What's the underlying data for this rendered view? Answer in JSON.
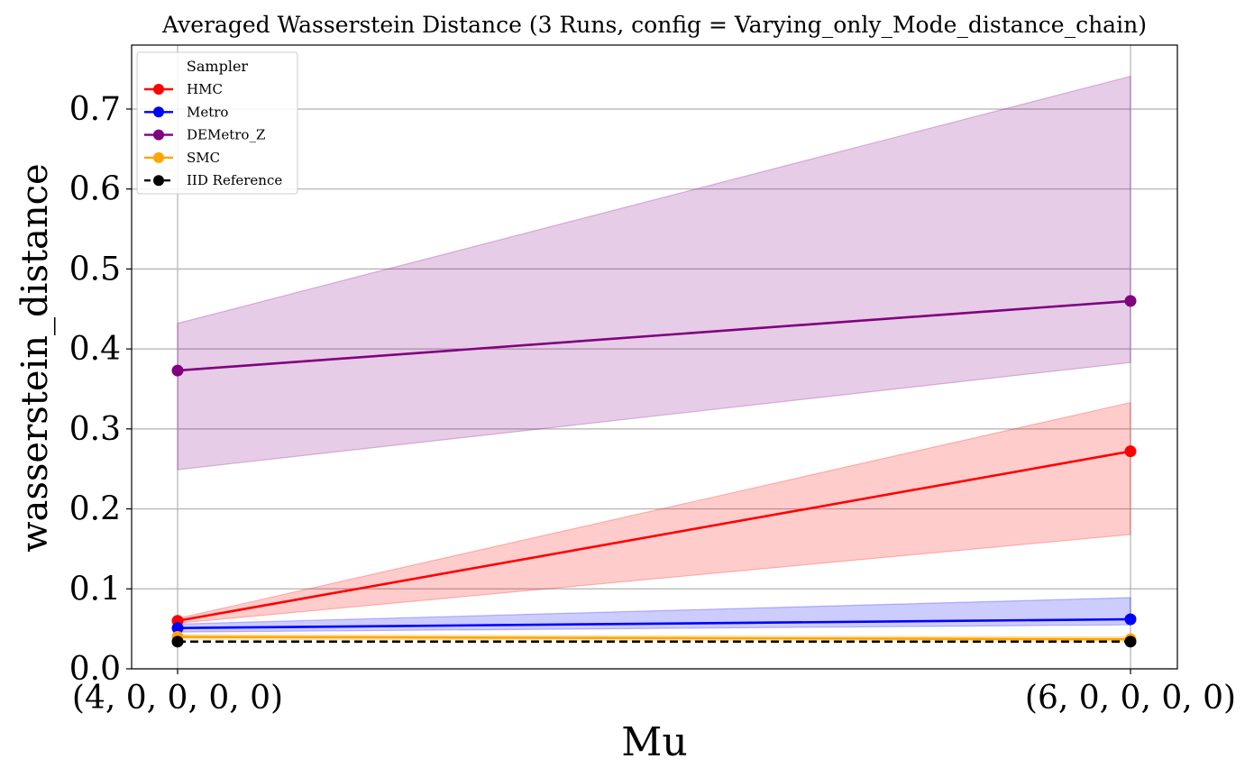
{
  "chart_data": {
    "type": "line",
    "title": "Averaged Wasserstein Distance (3 Runs, config = Varying_only_Mode_distance_chain)",
    "xlabel": "Mu",
    "ylabel": "wasserstein_distance",
    "categories": [
      "(4, 0, 0, 0, 0)",
      "(6, 0, 0, 0, 0)"
    ],
    "ylim": [
      0.0,
      0.78
    ],
    "yticks": [
      0.0,
      0.1,
      0.2,
      0.3,
      0.4,
      0.5,
      0.6,
      0.7
    ],
    "ytick_labels": [
      "0.0",
      "0.1",
      "0.2",
      "0.3",
      "0.4",
      "0.5",
      "0.6",
      "0.7"
    ],
    "grid": true,
    "legend": {
      "title": "Sampler",
      "placement": "top-left"
    },
    "series": [
      {
        "name": "HMC",
        "color": "#ff0000",
        "dashed": false,
        "values": [
          0.06,
          0.272
        ],
        "lower": [
          0.057,
          0.168
        ],
        "upper": [
          0.063,
          0.333
        ]
      },
      {
        "name": "Metro",
        "color": "#0000ff",
        "dashed": false,
        "values": [
          0.051,
          0.062
        ],
        "lower": [
          0.046,
          0.055
        ],
        "upper": [
          0.056,
          0.089
        ]
      },
      {
        "name": "DEMetro_Z",
        "color": "#800080",
        "dashed": false,
        "values": [
          0.373,
          0.46
        ],
        "lower": [
          0.249,
          0.383
        ],
        "upper": [
          0.432,
          0.741
        ]
      },
      {
        "name": "SMC",
        "color": "#ffa500",
        "dashed": false,
        "values": [
          0.04,
          0.037
        ],
        "lower": [
          0.037,
          0.034
        ],
        "upper": [
          0.043,
          0.04
        ]
      },
      {
        "name": "IID Reference",
        "color": "#000000",
        "dashed": true,
        "values": [
          0.034,
          0.034
        ],
        "lower": null,
        "upper": null
      }
    ]
  }
}
